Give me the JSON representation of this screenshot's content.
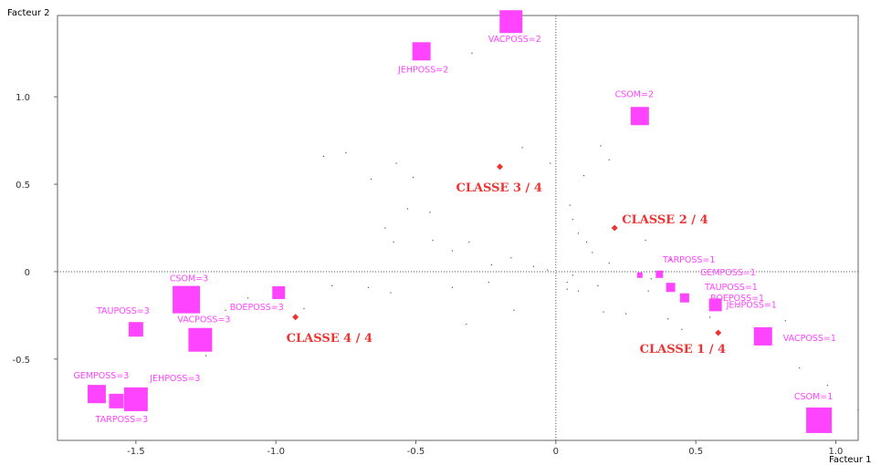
{
  "chart_data": {
    "type": "scatter",
    "xlabel": "Facteur 1",
    "ylabel": "Facteur 2",
    "xlim": [
      -1.78,
      1.08
    ],
    "ylim": [
      -0.965,
      1.465
    ],
    "x_ticks": [
      -1.5,
      -1.0,
      -0.5,
      0,
      0.5,
      1.0
    ],
    "x_tick_labels": [
      "-1.5",
      "-1.0",
      "-0.5",
      "0",
      "0.5",
      "1.0"
    ],
    "y_ticks": [
      -0.5,
      0,
      0.5,
      1.0
    ],
    "y_tick_labels": [
      "-0.5",
      "0",
      "0.5",
      "1.0"
    ],
    "reference_lines": [
      {
        "axis": "x",
        "value": 0,
        "style": "dotted"
      },
      {
        "axis": "y",
        "value": 0,
        "style": "dotted"
      }
    ],
    "colors": {
      "modality": "#ff44ff",
      "class": "#ee3333",
      "points": "#555555"
    },
    "modalities": [
      {
        "label": "VACPOSS=2",
        "x": -0.16,
        "y": 1.43,
        "weight": 25
      },
      {
        "label": "JEHPOSS=2",
        "x": -0.48,
        "y": 1.26,
        "weight": 20
      },
      {
        "label": "CSOM=2",
        "x": 0.3,
        "y": 0.89,
        "weight": 20
      },
      {
        "label": "TARPOSS=1",
        "x": 0.3,
        "y": -0.02,
        "weight": 6
      },
      {
        "label": "GEMPOSS=1",
        "x": 0.37,
        "y": -0.015,
        "weight": 8
      },
      {
        "label": "TAUPOSS=1",
        "x": 0.41,
        "y": -0.09,
        "weight": 10
      },
      {
        "label": "BOEPOSS=1",
        "x": 0.46,
        "y": -0.15,
        "weight": 10
      },
      {
        "label": "JEHPOSS=1",
        "x": 0.57,
        "y": -0.19,
        "weight": 14
      },
      {
        "label": "VACPOSS=1",
        "x": 0.74,
        "y": -0.37,
        "weight": 20
      },
      {
        "label": "CSOM=1",
        "x": 0.94,
        "y": -0.85,
        "weight": 28
      },
      {
        "label": "CSOM=3",
        "x": -1.32,
        "y": -0.16,
        "weight": 30
      },
      {
        "label": "TAUPOSS=3",
        "x": -1.5,
        "y": -0.33,
        "weight": 16
      },
      {
        "label": "VACPOSS=3",
        "x": -1.27,
        "y": -0.39,
        "weight": 26
      },
      {
        "label": "BOEPOSS=3",
        "x": -0.99,
        "y": -0.12,
        "weight": 14
      },
      {
        "label": "GEMPOSS=3",
        "x": -1.64,
        "y": -0.7,
        "weight": 20
      },
      {
        "label": "JEHPOSS=3",
        "x": -1.5,
        "y": -0.73,
        "weight": 26
      },
      {
        "label": "TARPOSS=3",
        "x": -1.57,
        "y": -0.74,
        "weight": 16
      }
    ],
    "classes": [
      {
        "label": "CLASSE 1 / 4",
        "x": 0.58,
        "y": -0.35
      },
      {
        "label": "CLASSE 2 / 4",
        "x": 0.21,
        "y": 0.25
      },
      {
        "label": "CLASSE 3 / 4",
        "x": -0.2,
        "y": 0.6
      },
      {
        "label": "CLASSE 4 / 4",
        "x": -0.93,
        "y": -0.26
      }
    ],
    "individuals": [
      [
        -0.3,
        1.25
      ],
      [
        -0.83,
        0.66
      ],
      [
        -0.75,
        0.68
      ],
      [
        -0.66,
        0.53
      ],
      [
        -0.57,
        0.62
      ],
      [
        -0.51,
        0.54
      ],
      [
        -0.61,
        0.25
      ],
      [
        -0.58,
        0.17
      ],
      [
        -0.44,
        0.18
      ],
      [
        -0.37,
        0.12
      ],
      [
        -0.31,
        0.17
      ],
      [
        -0.23,
        0.04
      ],
      [
        -0.16,
        0.08
      ],
      [
        -0.08,
        0.03
      ],
      [
        -0.03,
        0.01
      ],
      [
        -0.24,
        -0.06
      ],
      [
        -0.37,
        -0.09
      ],
      [
        -0.59,
        -0.12
      ],
      [
        -0.67,
        -0.09
      ],
      [
        -0.8,
        -0.08
      ],
      [
        -0.9,
        -0.21
      ],
      [
        -1.01,
        -0.11
      ],
      [
        -1.1,
        -0.15
      ],
      [
        -1.18,
        -0.22
      ],
      [
        -1.25,
        -0.48
      ],
      [
        -0.32,
        -0.3
      ],
      [
        -0.15,
        -0.22
      ],
      [
        0.05,
        0.38
      ],
      [
        0.06,
        0.3
      ],
      [
        0.08,
        0.22
      ],
      [
        0.11,
        0.17
      ],
      [
        0.13,
        0.11
      ],
      [
        0.1,
        0.55
      ],
      [
        0.16,
        0.72
      ],
      [
        0.19,
        0.64
      ],
      [
        0.19,
        0.05
      ],
      [
        0.06,
        -0.02
      ],
      [
        0.04,
        -0.06
      ],
      [
        0.04,
        -0.1
      ],
      [
        0.08,
        -0.11
      ],
      [
        0.15,
        -0.08
      ],
      [
        0.17,
        -0.23
      ],
      [
        0.25,
        -0.24
      ],
      [
        0.33,
        -0.11
      ],
      [
        0.34,
        -0.04
      ],
      [
        0.4,
        -0.27
      ],
      [
        0.45,
        -0.33
      ],
      [
        0.55,
        -0.26
      ],
      [
        0.65,
        -0.2
      ],
      [
        0.82,
        -0.28
      ],
      [
        0.87,
        -0.55
      ],
      [
        0.97,
        -0.65
      ],
      [
        1.08,
        -0.79
      ],
      [
        -0.02,
        0.62
      ],
      [
        -0.12,
        0.71
      ],
      [
        0.32,
        0.18
      ],
      [
        0.41,
        0.07
      ],
      [
        -0.45,
        0.34
      ],
      [
        -0.53,
        0.36
      ]
    ]
  }
}
